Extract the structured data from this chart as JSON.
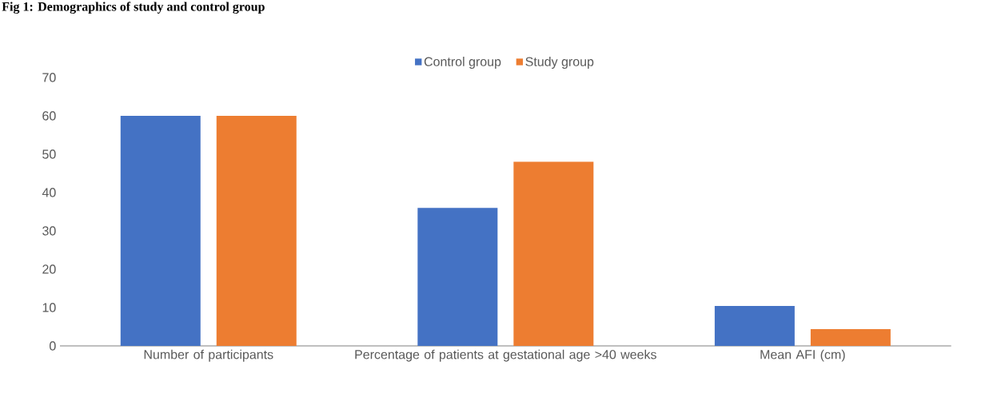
{
  "chart_data": {
    "type": "bar",
    "title": "Fig 1: Demographics of study and control group",
    "categories": [
      "Number of participants",
      "Percentage of patients at gestational age >40 weeks",
      "Mean AFI (cm)"
    ],
    "series": [
      {
        "name": "Control group",
        "color": "#4472c4",
        "values": [
          60,
          36,
          10.4
        ]
      },
      {
        "name": "Study group",
        "color": "#ed7d31",
        "values": [
          60,
          48,
          4.4
        ]
      }
    ],
    "ylim": [
      0,
      70
    ],
    "yticks": [
      0,
      10,
      20,
      30,
      40,
      50,
      60,
      70
    ],
    "grid": false,
    "legend": "top"
  }
}
